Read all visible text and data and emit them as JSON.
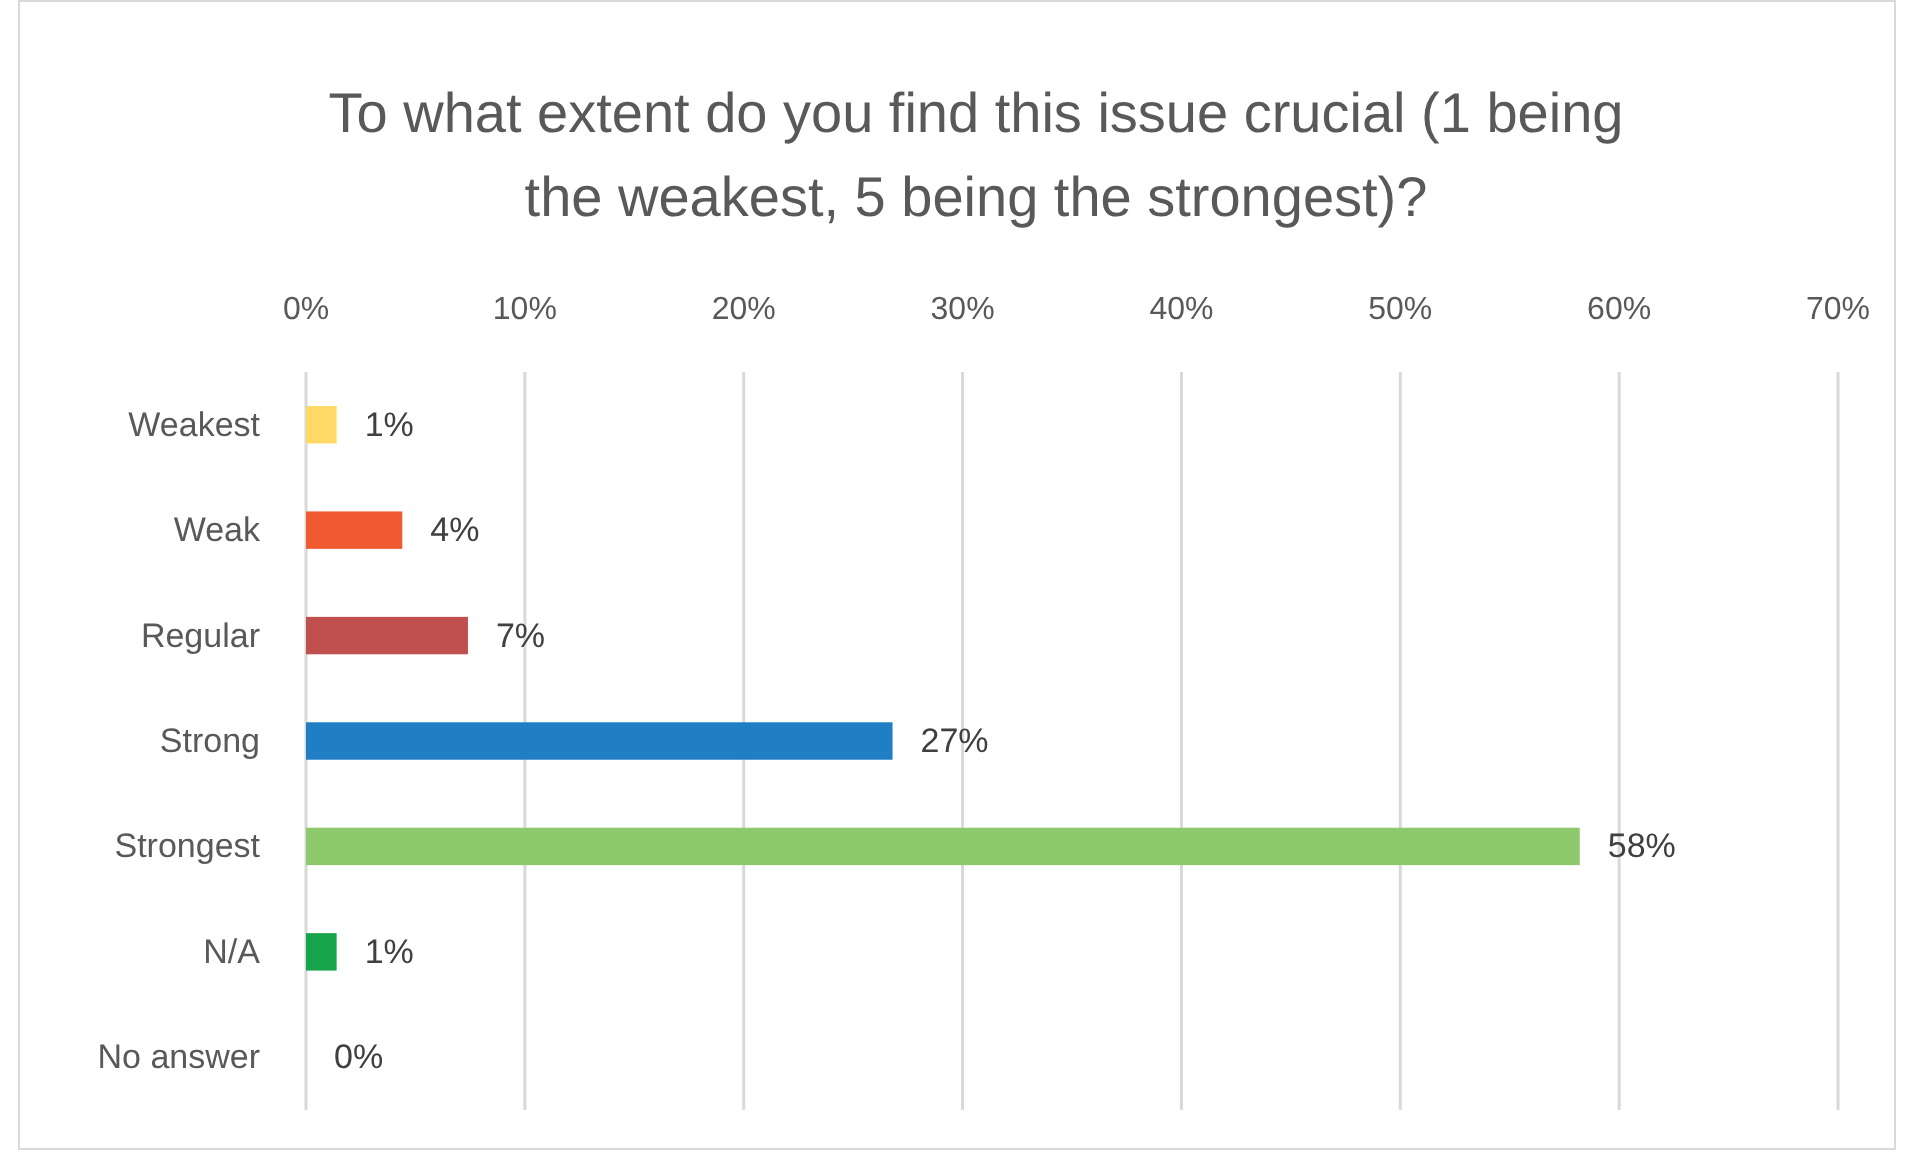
{
  "chart_data": {
    "type": "bar",
    "orientation": "horizontal",
    "title": "To what extent do you find this issue crucial (1 being the weakest, 5 being the strongest)?",
    "categories": [
      "Weakest",
      "Weak",
      "Regular",
      "Strong",
      "Strongest",
      "N/A",
      "No answer"
    ],
    "values": [
      1.4,
      4.4,
      7.4,
      26.8,
      58.2,
      1.4,
      0
    ],
    "colors": [
      "#ffd966",
      "#f15a30",
      "#c0504d",
      "#1f7ec4",
      "#8dc96c",
      "#17a34a",
      "#a5a5a5"
    ],
    "value_labels": [
      "1%",
      "4%",
      "7%",
      "27%",
      "58%",
      "1%",
      "0%"
    ],
    "xlim": [
      0,
      70
    ],
    "xticks": [
      {
        "value": 0,
        "label": "0%"
      },
      {
        "value": 10,
        "label": "10%"
      },
      {
        "value": 20,
        "label": "20%"
      },
      {
        "value": 30,
        "label": "30%"
      },
      {
        "value": 40,
        "label": "40%"
      },
      {
        "value": 50,
        "label": "50%"
      },
      {
        "value": 60,
        "label": "60%"
      },
      {
        "value": 70,
        "label": "70%"
      }
    ],
    "grid": "x"
  }
}
